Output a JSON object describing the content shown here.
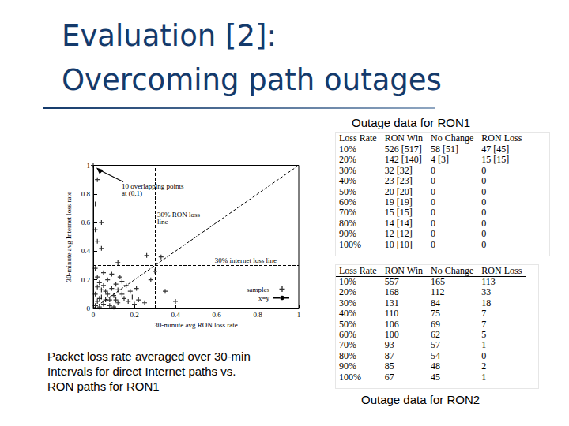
{
  "slide": {
    "title": "Evaluation [2]:\nOvercoming path outages",
    "caption": "Packet loss rate averaged over 30-min\nIntervals for direct Internet paths vs.\nRON paths for RON1"
  },
  "chart_data": {
    "type": "scatter",
    "xlabel": "30-minute avg RON loss rate",
    "ylabel": "30-minute avg Internet loss rate",
    "xlim": [
      0,
      1
    ],
    "ylim": [
      0,
      1
    ],
    "xticks": [
      0,
      0.2,
      0.4,
      0.6,
      0.8,
      1
    ],
    "yticks": [
      0,
      0.2,
      0.4,
      0.6,
      0.8,
      1
    ],
    "grid": false,
    "legend": "lower right",
    "series": [
      {
        "name": "samples",
        "type": "scatter",
        "marker": "plus",
        "color": "#000000",
        "x": [
          0.01,
          0.02,
          0.03,
          0.04,
          0.05,
          0.06,
          0.02,
          0.08,
          0.1,
          0.12,
          0.03,
          0.07,
          0.09,
          0.11,
          0.14,
          0.15,
          0.13,
          0.05,
          0.02,
          0.17,
          0.18,
          0.2,
          0.16,
          0.01,
          0.04,
          0.06,
          0.08,
          0.1,
          0.12,
          0.14,
          0.01,
          0.09,
          0.19,
          0.22,
          0.25,
          0.21,
          0.03,
          0.07,
          0.11,
          0.05,
          0,
          0.02,
          0.01,
          0.04,
          0.01,
          0.02,
          0.04,
          0.26,
          0.33,
          0.12,
          0.3,
          0.28,
          0.35,
          0.4
        ],
        "values": [
          0.02,
          0.05,
          0.01,
          0.08,
          0.03,
          0.12,
          0.15,
          0.06,
          0.09,
          0.04,
          0.18,
          0.2,
          0.14,
          0.17,
          0.1,
          0.07,
          0.22,
          0.25,
          0.22,
          0.05,
          0.12,
          0.03,
          0.16,
          0.1,
          0.13,
          0.06,
          0.02,
          0.01,
          0.13,
          0.19,
          0.28,
          0.24,
          0.08,
          0.06,
          0.04,
          0.14,
          0.07,
          0.1,
          0.06,
          0.16,
          1,
          0.9,
          0.73,
          0.6,
          0.55,
          0.47,
          0.42,
          0.37,
          0.36,
          0.32,
          0.26,
          0.2,
          0.12,
          0.05
        ]
      },
      {
        "name": "x=y",
        "type": "line",
        "line_style": "dashed",
        "color": "#000000",
        "x": [
          0,
          1
        ],
        "values": [
          0,
          1
        ]
      }
    ],
    "reference_lines": [
      {
        "axis": "x",
        "value": 0.3,
        "label": "30% RON loss\nline",
        "line_style": "dashed"
      },
      {
        "axis": "y",
        "value": 0.3,
        "label": "30% internet loss line",
        "line_style": "dashed"
      }
    ],
    "annotations": [
      {
        "text": "10 overlapping points\nat (0,1)",
        "x": 0,
        "y": 1
      }
    ]
  },
  "tables": [
    {
      "caption": "Outage data for RON1",
      "columns": [
        "Loss Rate",
        "RON Win",
        "No Change",
        "RON Loss"
      ],
      "rows": [
        [
          "10%",
          "526 [517]",
          "58 [51]",
          "47 [45]"
        ],
        [
          "20%",
          "142 [140]",
          "4 [3]",
          "15 [15]"
        ],
        [
          "30%",
          "32 [32]",
          0,
          0
        ],
        [
          "40%",
          "23 [23]",
          0,
          0
        ],
        [
          "50%",
          "20 [20]",
          0,
          0
        ],
        [
          "60%",
          "19 [19]",
          0,
          0
        ],
        [
          "70%",
          "15 [15]",
          0,
          0
        ],
        [
          "80%",
          "14 [14]",
          0,
          0
        ],
        [
          "90%",
          "12 [12]",
          0,
          0
        ],
        [
          "100%",
          "10 [10]",
          0,
          0
        ]
      ]
    },
    {
      "caption": "Outage data for RON2",
      "columns": [
        "Loss Rate",
        "RON Win",
        "No Change",
        "RON Loss"
      ],
      "rows": [
        [
          "10%",
          557,
          165,
          113
        ],
        [
          "20%",
          168,
          112,
          33
        ],
        [
          "30%",
          131,
          84,
          18
        ],
        [
          "40%",
          110,
          75,
          7
        ],
        [
          "50%",
          106,
          69,
          7
        ],
        [
          "60%",
          100,
          62,
          5
        ],
        [
          "70%",
          93,
          57,
          1
        ],
        [
          "80%",
          87,
          54,
          0
        ],
        [
          "90%",
          85,
          48,
          2
        ],
        [
          "100%",
          67,
          45,
          1
        ]
      ]
    }
  ]
}
